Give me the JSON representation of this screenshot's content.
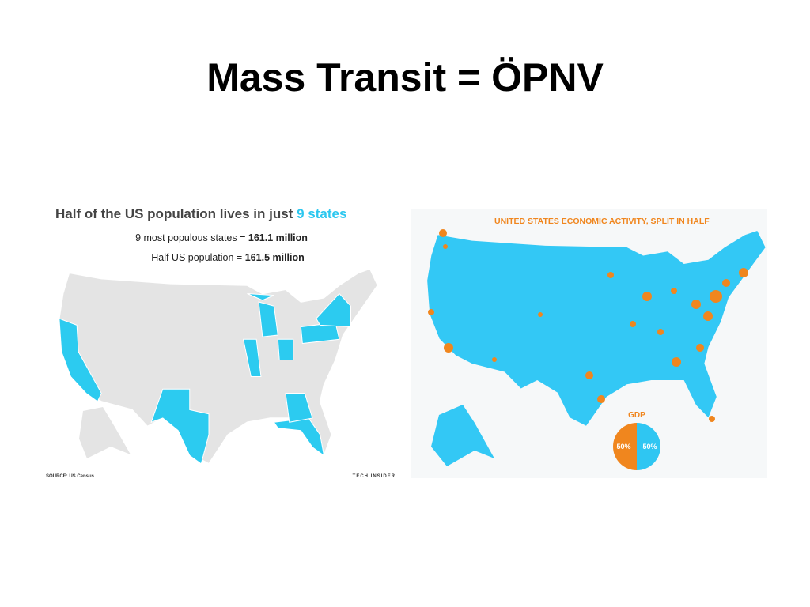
{
  "title": "Mass Transit = ÖPNV",
  "left_map": {
    "title": [
      "Half of the US population lives in just",
      "9 states"
    ],
    "line1": [
      "9 most populous states =",
      "161.1 million"
    ],
    "line2": [
      "Half US population =",
      "161.5 million"
    ],
    "source": "SOURCE: US Census",
    "brand": "TECH INSIDER"
  },
  "right_map": {
    "title": "UNITED STATES ECONOMIC ACTIVITY, SPLIT IN HALF",
    "pie": {
      "label": "GDP",
      "slices": [
        {
          "label": "50%",
          "value": 50,
          "color": "#f0861e"
        },
        {
          "label": "50%",
          "value": 50,
          "color": "#2fc6f2"
        }
      ]
    }
  }
}
